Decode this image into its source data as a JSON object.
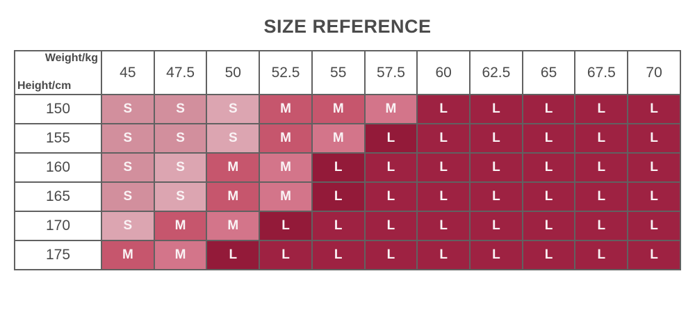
{
  "page": {
    "title": "SIZE REFERENCE"
  },
  "table": {
    "corner": {
      "top_label": "Weight/kg",
      "bottom_label": "Height/cm"
    },
    "weights": [
      "45",
      "47.5",
      "50",
      "52.5",
      "55",
      "57.5",
      "60",
      "62.5",
      "65",
      "67.5",
      "70"
    ],
    "heights": [
      "150",
      "155",
      "160",
      "165",
      "170",
      "175"
    ],
    "shades": [
      [
        "S",
        "S",
        "S+",
        "M",
        "M",
        "M+",
        "L",
        "L",
        "L",
        "L",
        "L"
      ],
      [
        "S",
        "S",
        "S+",
        "M",
        "M+",
        "L-",
        "L",
        "L",
        "L",
        "L",
        "L"
      ],
      [
        "S",
        "S+",
        "M",
        "M+",
        "L-",
        "L",
        "L",
        "L",
        "L",
        "L",
        "L"
      ],
      [
        "S",
        "S+",
        "M",
        "M+",
        "L-",
        "L",
        "L",
        "L",
        "L",
        "L",
        "L"
      ],
      [
        "S+",
        "M",
        "M+",
        "L-",
        "L",
        "L",
        "L",
        "L",
        "L",
        "L",
        "L"
      ],
      [
        "M",
        "M+",
        "L-",
        "L",
        "L",
        "L",
        "L",
        "L",
        "L",
        "L",
        "L"
      ]
    ]
  },
  "chart_data": {
    "type": "table",
    "title": "SIZE REFERENCE",
    "x_axis_label": "Weight/kg",
    "y_axis_label": "Height/cm",
    "weights_kg": [
      45,
      47.5,
      50,
      52.5,
      55,
      57.5,
      60,
      62.5,
      65,
      67.5,
      70
    ],
    "heights_cm": [
      150,
      155,
      160,
      165,
      170,
      175
    ],
    "sizes": [
      [
        "S",
        "S",
        "S",
        "M",
        "M",
        "M",
        "L",
        "L",
        "L",
        "L",
        "L"
      ],
      [
        "S",
        "S",
        "S",
        "M",
        "M",
        "L",
        "L",
        "L",
        "L",
        "L",
        "L"
      ],
      [
        "S",
        "S",
        "M",
        "M",
        "L",
        "L",
        "L",
        "L",
        "L",
        "L",
        "L"
      ],
      [
        "S",
        "S",
        "M",
        "M",
        "L",
        "L",
        "L",
        "L",
        "L",
        "L",
        "L"
      ],
      [
        "S",
        "M",
        "M",
        "L",
        "L",
        "L",
        "L",
        "L",
        "L",
        "L",
        "L"
      ],
      [
        "M",
        "M",
        "L",
        "L",
        "L",
        "L",
        "L",
        "L",
        "L",
        "L",
        "L"
      ]
    ],
    "legend": "cell color encodes size: S light pink, M rose, L dark red"
  },
  "colors": {
    "title": "#4b4b4b",
    "header_text": "#4a4a4a",
    "border": "#616161",
    "cell_text": "#faf3f5",
    "size_s": "#d28f9d",
    "size_s_light": "#dca5b1",
    "size_m": "#c6566d",
    "size_m_light": "#d3758a",
    "size_l": "#9e2242",
    "size_l_dark": "#931a39"
  }
}
